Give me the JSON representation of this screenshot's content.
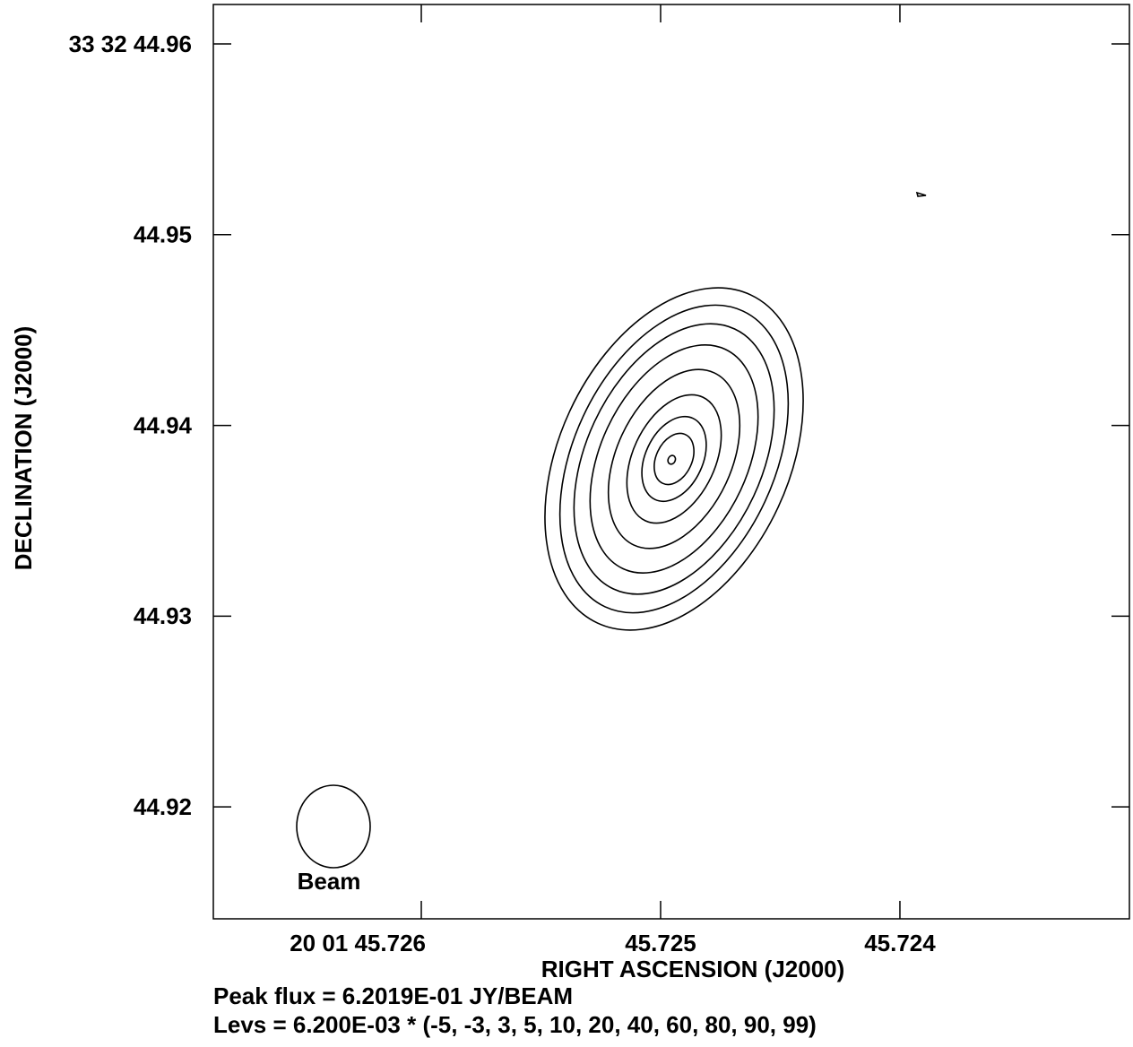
{
  "chart_data": {
    "type": "contour",
    "xlabel": "RIGHT ASCENSION (J2000)",
    "ylabel": "DECLINATION (J2000)",
    "xlim": [
      45.726869,
      45.723041
    ],
    "ylim": [
      44.91413,
      44.96207
    ],
    "xticks": [
      {
        "value": 45.726,
        "label": "20 01 45.726"
      },
      45.725,
      45.724
    ],
    "yticks": [
      {
        "value": 44.96,
        "label": "33 32 44.96"
      },
      44.95,
      44.94,
      44.93,
      44.92
    ],
    "beam_label": "Beam",
    "notes": [
      "Peak flux =  6.2019E-01 JY/BEAM",
      "Levs = 6.200E-03 * (-5, -3, 3, 5, 10, 20, 40, 60, 80, 90, 99)"
    ]
  }
}
